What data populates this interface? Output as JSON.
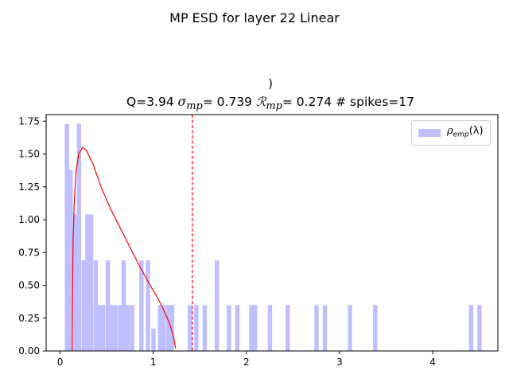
{
  "chart_data": {
    "type": "histogram",
    "suptitle": "MP ESD for layer 22 Linear",
    "title_line1": ")",
    "title_parts": {
      "q": "Q=3.94",
      "sigma_symbol": "σ",
      "sigma_sub": "mp",
      "sigma_value": "= 0.739",
      "r_symbol": "ℛ",
      "r_sub": "mp",
      "r_value": "= 0.274",
      "spikes": "# spikes=17"
    },
    "legend": {
      "symbol": "ρ",
      "sub": "emp",
      "arg": "(λ)"
    },
    "xlim": [
      -0.15,
      4.7
    ],
    "ylim": [
      0,
      1.8
    ],
    "x_ticks": [
      0,
      1,
      2,
      3,
      4
    ],
    "y_ticks": [
      0.0,
      0.25,
      0.5,
      0.75,
      1.0,
      1.25,
      1.5,
      1.75
    ],
    "bin_width": 0.0435,
    "histogram_bars": [
      {
        "x": 0.05,
        "h": 1.73
      },
      {
        "x": 0.09,
        "h": 1.38
      },
      {
        "x": 0.14,
        "h": 1.04
      },
      {
        "x": 0.18,
        "h": 1.73
      },
      {
        "x": 0.23,
        "h": 0.69
      },
      {
        "x": 0.27,
        "h": 1.04
      },
      {
        "x": 0.31,
        "h": 1.04
      },
      {
        "x": 0.36,
        "h": 0.69
      },
      {
        "x": 0.4,
        "h": 0.35
      },
      {
        "x": 0.44,
        "h": 0.35
      },
      {
        "x": 0.49,
        "h": 0.69
      },
      {
        "x": 0.53,
        "h": 0.35
      },
      {
        "x": 0.57,
        "h": 0.35
      },
      {
        "x": 0.62,
        "h": 0.35
      },
      {
        "x": 0.66,
        "h": 0.69
      },
      {
        "x": 0.7,
        "h": 0.35
      },
      {
        "x": 0.75,
        "h": 0.35
      },
      {
        "x": 0.85,
        "h": 0.69
      },
      {
        "x": 0.92,
        "h": 0.69
      },
      {
        "x": 0.98,
        "h": 0.17
      },
      {
        "x": 1.05,
        "h": 0.35
      },
      {
        "x": 1.09,
        "h": 0.35
      },
      {
        "x": 1.14,
        "h": 0.35
      },
      {
        "x": 1.18,
        "h": 0.35
      },
      {
        "x": 1.37,
        "h": 0.35
      },
      {
        "x": 1.44,
        "h": 0.35
      },
      {
        "x": 1.53,
        "h": 0.35
      },
      {
        "x": 1.66,
        "h": 0.69
      },
      {
        "x": 1.79,
        "h": 0.35
      },
      {
        "x": 1.88,
        "h": 0.35
      },
      {
        "x": 2.03,
        "h": 0.35
      },
      {
        "x": 2.07,
        "h": 0.35
      },
      {
        "x": 2.23,
        "h": 0.35
      },
      {
        "x": 2.42,
        "h": 0.35
      },
      {
        "x": 2.73,
        "h": 0.35
      },
      {
        "x": 2.82,
        "h": 0.35
      },
      {
        "x": 3.09,
        "h": 0.35
      },
      {
        "x": 3.36,
        "h": 0.35
      },
      {
        "x": 4.39,
        "h": 0.35
      },
      {
        "x": 4.48,
        "h": 0.35
      }
    ],
    "mp_curve": [
      {
        "x": 0.13,
        "y": 0.0
      },
      {
        "x": 0.135,
        "y": 0.55
      },
      {
        "x": 0.14,
        "y": 0.85
      },
      {
        "x": 0.15,
        "y": 1.1
      },
      {
        "x": 0.17,
        "y": 1.36
      },
      {
        "x": 0.2,
        "y": 1.5
      },
      {
        "x": 0.24,
        "y": 1.55
      },
      {
        "x": 0.28,
        "y": 1.53
      },
      {
        "x": 0.35,
        "y": 1.43
      },
      {
        "x": 0.45,
        "y": 1.23
      },
      {
        "x": 0.55,
        "y": 1.07
      },
      {
        "x": 0.65,
        "y": 0.93
      },
      {
        "x": 0.75,
        "y": 0.79
      },
      {
        "x": 0.85,
        "y": 0.65
      },
      {
        "x": 0.95,
        "y": 0.52
      },
      {
        "x": 1.05,
        "y": 0.4
      },
      {
        "x": 1.12,
        "y": 0.3
      },
      {
        "x": 1.18,
        "y": 0.2
      },
      {
        "x": 1.22,
        "y": 0.1
      },
      {
        "x": 1.24,
        "y": 0.02
      }
    ],
    "vline_x": 1.42,
    "colors": {
      "hist": "#bfbfff",
      "curve": "#ff0000",
      "vline": "#ff0000"
    }
  }
}
